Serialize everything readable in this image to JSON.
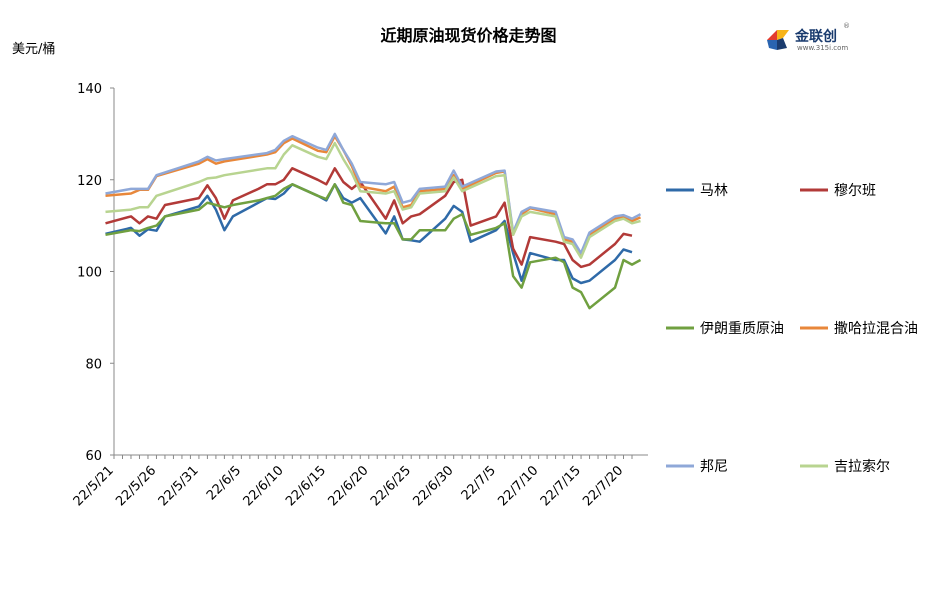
{
  "chart_data": {
    "type": "line",
    "title": "近期原油现货价格走势图",
    "ylabel": "美元/桶",
    "ylim": [
      60,
      140
    ],
    "yticks": [
      60,
      80,
      100,
      120,
      140
    ],
    "xticks": [
      "22/5/21",
      "22/5/26",
      "22/5/31",
      "22/6/5",
      "22/6/10",
      "22/6/15",
      "22/6/20",
      "22/6/25",
      "22/6/30",
      "22/7/5",
      "22/7/10",
      "22/7/15",
      "22/7/20"
    ],
    "x_range": [
      "22/5/21",
      "22/7/21"
    ],
    "grid": false,
    "legend_position": "right",
    "series": [
      {
        "name": "马林",
        "color": "#2f6aa8",
        "points": [
          [
            "5/20",
            108.2
          ],
          [
            "5/23",
            109.5
          ],
          [
            "5/24",
            107.8
          ],
          [
            "5/25",
            109.2
          ],
          [
            "5/26",
            108.9
          ],
          [
            "5/27",
            112.0
          ],
          [
            "5/31",
            114.2
          ],
          [
            "6/1",
            116.5
          ],
          [
            "6/2",
            113.5
          ],
          [
            "6/3",
            109.0
          ],
          [
            "6/4",
            112.0
          ],
          [
            "6/7",
            115.0
          ],
          [
            "6/8",
            116.0
          ],
          [
            "6/9",
            115.8
          ],
          [
            "6/10",
            117.0
          ],
          [
            "6/11",
            119.0
          ],
          [
            "6/14",
            116.5
          ],
          [
            "6/15",
            115.5
          ],
          [
            "6/16",
            119.0
          ],
          [
            "6/17",
            116.0
          ],
          [
            "6/18",
            115.0
          ],
          [
            "6/19",
            116.0
          ],
          [
            "6/22",
            108.3
          ],
          [
            "6/23",
            112.0
          ],
          [
            "6/24",
            107.0
          ],
          [
            "6/25",
            106.8
          ],
          [
            "6/26",
            106.5
          ],
          [
            "6/29",
            111.5
          ],
          [
            "6/30",
            114.3
          ],
          [
            "7/1",
            113.0
          ],
          [
            "7/2",
            106.5
          ],
          [
            "7/5",
            109.0
          ],
          [
            "7/6",
            111.0
          ],
          [
            "7/7",
            104.0
          ],
          [
            "7/8",
            98.0
          ],
          [
            "7/9",
            104.0
          ],
          [
            "7/12",
            102.5
          ],
          [
            "7/13",
            102.5
          ],
          [
            "7/14",
            98.5
          ],
          [
            "7/15",
            97.5
          ],
          [
            "7/16",
            98.0
          ],
          [
            "7/19",
            102.5
          ],
          [
            "7/20",
            104.8
          ],
          [
            "7/21",
            104.2
          ]
        ]
      },
      {
        "name": "穆尔班",
        "color": "#b23a38",
        "points": [
          [
            "5/20",
            110.5
          ],
          [
            "5/23",
            112.0
          ],
          [
            "5/24",
            110.5
          ],
          [
            "5/25",
            112.0
          ],
          [
            "5/26",
            111.5
          ],
          [
            "5/27",
            114.5
          ],
          [
            "5/31",
            116.0
          ],
          [
            "6/1",
            118.8
          ],
          [
            "6/2",
            116.0
          ],
          [
            "6/3",
            111.5
          ],
          [
            "6/4",
            115.5
          ],
          [
            "6/7",
            118.0
          ],
          [
            "6/8",
            119.0
          ],
          [
            "6/9",
            119.0
          ],
          [
            "6/10",
            120.0
          ],
          [
            "6/11",
            122.5
          ],
          [
            "6/14",
            120.0
          ],
          [
            "6/15",
            119.0
          ],
          [
            "6/16",
            122.5
          ],
          [
            "6/17",
            119.5
          ],
          [
            "6/18",
            118.0
          ],
          [
            "6/19",
            119.5
          ],
          [
            "6/22",
            111.5
          ],
          [
            "6/23",
            115.5
          ],
          [
            "6/24",
            110.5
          ],
          [
            "6/25",
            112.0
          ],
          [
            "6/26",
            112.5
          ],
          [
            "6/29",
            116.5
          ],
          [
            "6/30",
            119.5
          ],
          [
            "7/1",
            120.0
          ],
          [
            "7/2",
            110.0
          ],
          [
            "7/5",
            112.0
          ],
          [
            "7/6",
            115.0
          ],
          [
            "7/7",
            105.0
          ],
          [
            "7/8",
            101.5
          ],
          [
            "7/9",
            107.5
          ],
          [
            "7/12",
            106.5
          ],
          [
            "7/13",
            106.0
          ],
          [
            "7/14",
            102.5
          ],
          [
            "7/15",
            101.0
          ],
          [
            "7/16",
            101.5
          ],
          [
            "7/19",
            106.0
          ],
          [
            "7/20",
            108.2
          ],
          [
            "7/21",
            107.8
          ]
        ]
      },
      {
        "name": "伊朗重质原油",
        "color": "#70a040",
        "points": [
          [
            "5/20",
            108.0
          ],
          [
            "5/23",
            109.0
          ],
          [
            "5/24",
            108.8
          ],
          [
            "5/25",
            109.5
          ],
          [
            "5/26",
            110.0
          ],
          [
            "5/27",
            112.0
          ],
          [
            "5/31",
            113.5
          ],
          [
            "6/1",
            115.0
          ],
          [
            "6/2",
            114.5
          ],
          [
            "6/3",
            114.0
          ],
          [
            "6/4",
            114.5
          ],
          [
            "6/7",
            115.5
          ],
          [
            "6/8",
            116.0
          ],
          [
            "6/9",
            116.5
          ],
          [
            "6/10",
            118.0
          ],
          [
            "6/11",
            119.0
          ],
          [
            "6/14",
            116.5
          ],
          [
            "6/15",
            115.8
          ],
          [
            "6/16",
            119.0
          ],
          [
            "6/17",
            115.0
          ],
          [
            "6/18",
            114.5
          ],
          [
            "6/19",
            111.0
          ],
          [
            "6/22",
            110.5
          ],
          [
            "6/23",
            110.5
          ],
          [
            "6/24",
            107.0
          ],
          [
            "6/25",
            107.0
          ],
          [
            "6/26",
            109.0
          ],
          [
            "6/29",
            109.0
          ],
          [
            "6/30",
            111.5
          ],
          [
            "7/1",
            112.5
          ],
          [
            "7/2",
            108.0
          ],
          [
            "7/5",
            109.5
          ],
          [
            "7/6",
            110.5
          ],
          [
            "7/7",
            99.0
          ],
          [
            "7/8",
            96.5
          ],
          [
            "7/9",
            102.0
          ],
          [
            "7/12",
            103.0
          ],
          [
            "7/13",
            102.0
          ],
          [
            "7/14",
            96.5
          ],
          [
            "7/15",
            95.5
          ],
          [
            "7/16",
            92.0
          ],
          [
            "7/19",
            96.5
          ],
          [
            "7/20",
            102.5
          ],
          [
            "7/21",
            101.5
          ],
          [
            "7/22",
            102.5
          ]
        ]
      },
      {
        "name": "撒哈拉混合油",
        "color": "#e8873a",
        "points": [
          [
            "5/20",
            116.5
          ],
          [
            "5/23",
            117.0
          ],
          [
            "5/24",
            117.8
          ],
          [
            "5/25",
            117.8
          ],
          [
            "5/26",
            120.8
          ],
          [
            "5/31",
            123.5
          ],
          [
            "6/1",
            124.5
          ],
          [
            "6/2",
            123.5
          ],
          [
            "6/3",
            124.0
          ],
          [
            "6/8",
            125.5
          ],
          [
            "6/9",
            126.0
          ],
          [
            "6/10",
            128.0
          ],
          [
            "6/11",
            129.0
          ],
          [
            "6/14",
            126.3
          ],
          [
            "6/15",
            126.0
          ],
          [
            "6/16",
            129.5
          ],
          [
            "6/17",
            126.5
          ],
          [
            "6/18",
            123.0
          ],
          [
            "6/19",
            118.5
          ],
          [
            "6/22",
            117.5
          ],
          [
            "6/23",
            118.5
          ],
          [
            "6/24",
            114.0
          ],
          [
            "6/25",
            114.5
          ],
          [
            "6/26",
            117.5
          ],
          [
            "6/29",
            118.0
          ],
          [
            "6/30",
            121.0
          ],
          [
            "7/1",
            118.0
          ],
          [
            "7/5",
            121.5
          ],
          [
            "7/6",
            121.8
          ],
          [
            "7/7",
            108.0
          ],
          [
            "7/8",
            112.5
          ],
          [
            "7/9",
            113.8
          ],
          [
            "7/12",
            112.5
          ],
          [
            "7/13",
            107.0
          ],
          [
            "7/14",
            106.5
          ],
          [
            "7/15",
            103.5
          ],
          [
            "7/16",
            108.0
          ],
          [
            "7/19",
            111.5
          ],
          [
            "7/20",
            111.8
          ],
          [
            "7/21",
            111.0
          ],
          [
            "7/22",
            111.8
          ]
        ]
      },
      {
        "name": "邦尼",
        "color": "#8fa8d8",
        "points": [
          [
            "5/20",
            117.0
          ],
          [
            "5/23",
            118.0
          ],
          [
            "5/24",
            118.0
          ],
          [
            "5/25",
            118.0
          ],
          [
            "5/26",
            121.0
          ],
          [
            "5/31",
            124.0
          ],
          [
            "6/1",
            125.0
          ],
          [
            "6/2",
            124.2
          ],
          [
            "6/3",
            124.5
          ],
          [
            "6/8",
            125.8
          ],
          [
            "6/9",
            126.5
          ],
          [
            "6/10",
            128.5
          ],
          [
            "6/11",
            129.5
          ],
          [
            "6/14",
            127.0
          ],
          [
            "6/15",
            126.5
          ],
          [
            "6/16",
            130.0
          ],
          [
            "6/17",
            126.5
          ],
          [
            "6/18",
            123.5
          ],
          [
            "6/19",
            119.5
          ],
          [
            "6/22",
            119.0
          ],
          [
            "6/23",
            119.5
          ],
          [
            "6/24",
            115.0
          ],
          [
            "6/25",
            115.5
          ],
          [
            "6/26",
            118.0
          ],
          [
            "6/29",
            118.5
          ],
          [
            "6/30",
            122.0
          ],
          [
            "7/1",
            118.5
          ],
          [
            "7/5",
            121.8
          ],
          [
            "7/6",
            122.0
          ],
          [
            "7/7",
            108.5
          ],
          [
            "7/8",
            113.0
          ],
          [
            "7/9",
            114.0
          ],
          [
            "7/12",
            113.0
          ],
          [
            "7/13",
            107.5
          ],
          [
            "7/14",
            107.0
          ],
          [
            "7/15",
            104.0
          ],
          [
            "7/16",
            108.5
          ],
          [
            "7/19",
            112.0
          ],
          [
            "7/20",
            112.3
          ],
          [
            "7/21",
            111.5
          ],
          [
            "7/22",
            112.5
          ]
        ]
      },
      {
        "name": "吉拉索尔",
        "color": "#b8d490",
        "points": [
          [
            "5/20",
            113.0
          ],
          [
            "5/23",
            113.5
          ],
          [
            "5/24",
            114.0
          ],
          [
            "5/25",
            114.0
          ],
          [
            "5/26",
            116.5
          ],
          [
            "5/31",
            119.5
          ],
          [
            "6/1",
            120.3
          ],
          [
            "6/2",
            120.5
          ],
          [
            "6/3",
            121.0
          ],
          [
            "6/8",
            122.5
          ],
          [
            "6/9",
            122.5
          ],
          [
            "6/10",
            125.5
          ],
          [
            "6/11",
            127.5
          ],
          [
            "6/14",
            125.0
          ],
          [
            "6/15",
            124.5
          ],
          [
            "6/16",
            128.0
          ],
          [
            "6/17",
            124.5
          ],
          [
            "6/18",
            121.5
          ],
          [
            "6/19",
            117.5
          ],
          [
            "6/22",
            117.0
          ],
          [
            "6/23",
            117.5
          ],
          [
            "6/24",
            113.5
          ],
          [
            "6/25",
            114.0
          ],
          [
            "6/26",
            117.0
          ],
          [
            "6/29",
            117.5
          ],
          [
            "6/30",
            120.5
          ],
          [
            "7/1",
            117.5
          ],
          [
            "7/5",
            120.8
          ],
          [
            "7/6",
            121.0
          ],
          [
            "7/7",
            108.0
          ],
          [
            "7/8",
            112.0
          ],
          [
            "7/9",
            113.0
          ],
          [
            "7/12",
            112.0
          ],
          [
            "7/13",
            106.5
          ],
          [
            "7/14",
            106.0
          ],
          [
            "7/15",
            103.0
          ],
          [
            "7/16",
            107.5
          ],
          [
            "7/19",
            111.0
          ],
          [
            "7/20",
            111.5
          ],
          [
            "7/21",
            110.5
          ],
          [
            "7/22",
            111.0
          ]
        ]
      }
    ]
  },
  "logo": {
    "brand": "金联创",
    "site": "www.315i.com",
    "reg": "®"
  }
}
